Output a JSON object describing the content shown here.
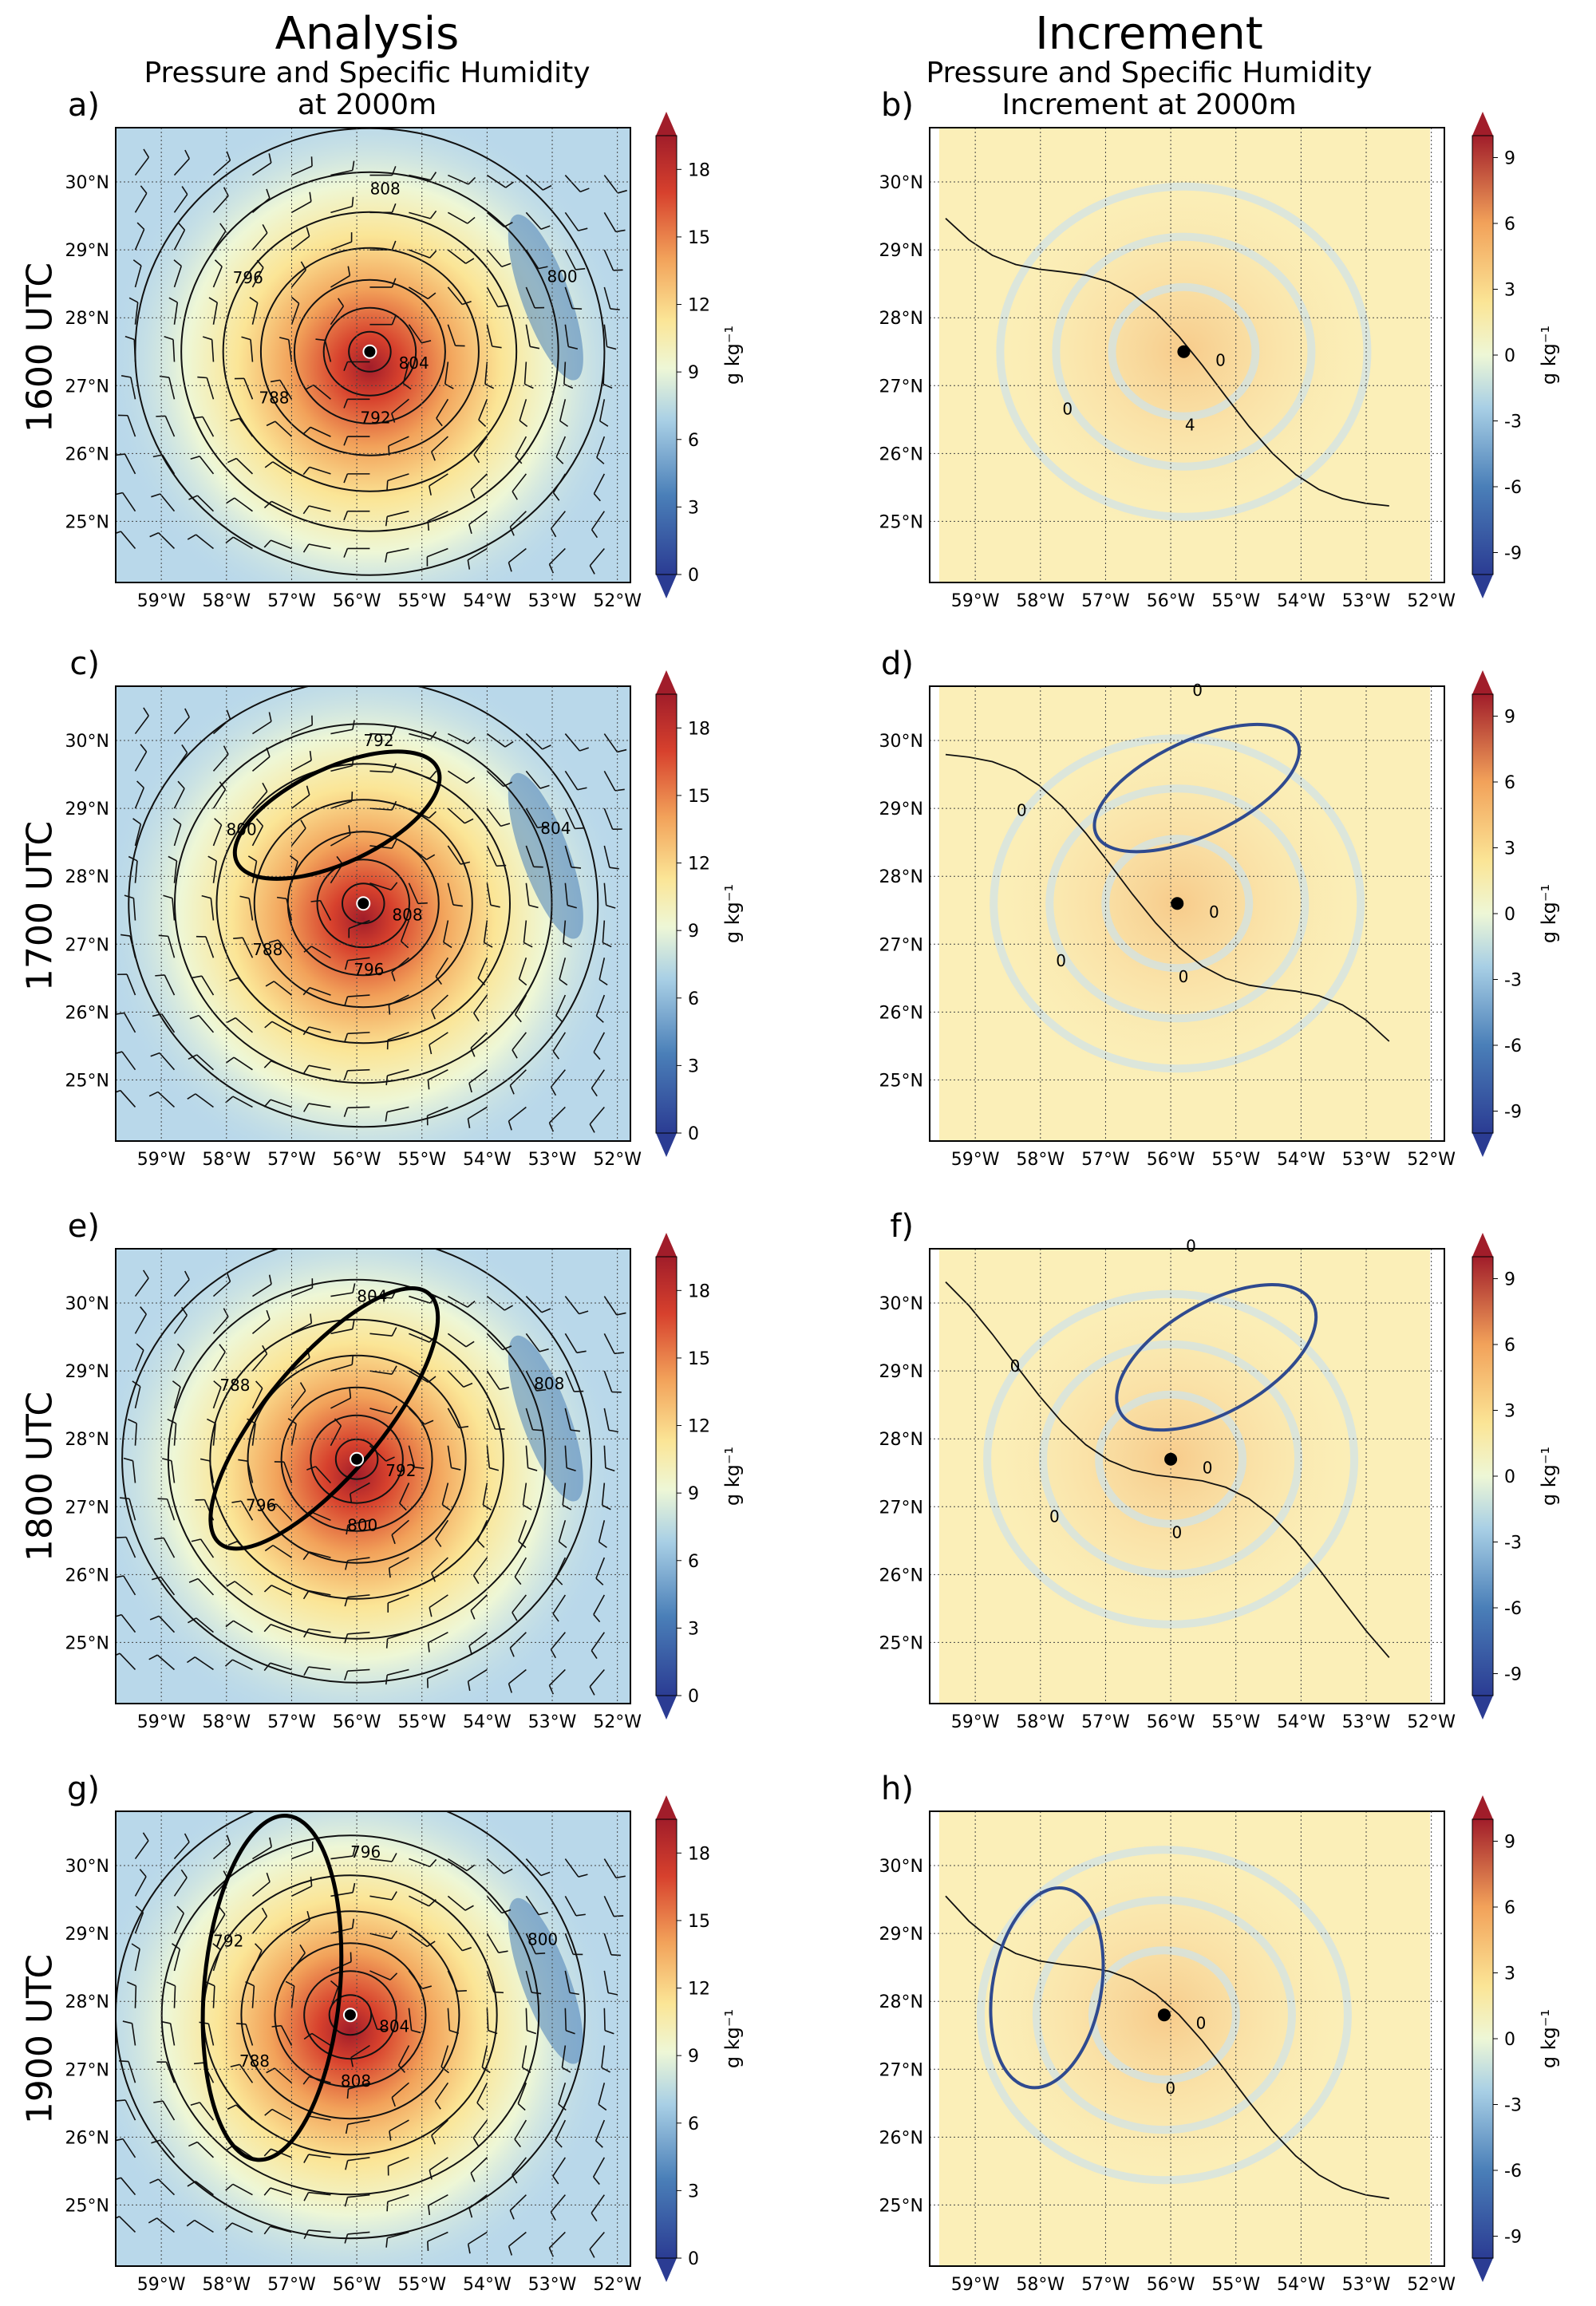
{
  "headers": {
    "analysis_title": "Analysis",
    "analysis_subtitle_1": "Pressure and Specific Humidity",
    "analysis_subtitle_2": "at 2000m",
    "increment_title": "Increment",
    "increment_subtitle_1": "Pressure and Specific Humidity",
    "increment_subtitle_2": "Increment at 2000m"
  },
  "rows": [
    "1600 UTC",
    "1700 UTC",
    "1800 UTC",
    "1900 UTC"
  ],
  "colors": {
    "blue_dark": "#2b3c93",
    "blue_mid": "#4a7fb8",
    "blue_light": "#a8cfe5",
    "pale": "#eef7d6",
    "yellow": "#fbe596",
    "orange": "#f2a25a",
    "red": "#d7412d",
    "red_dark": "#a11d2a",
    "ellipse_blue": "#2f4a8f"
  },
  "chart_data": [
    {
      "panel": "a)",
      "type": "heatmap",
      "row": "1600 UTC",
      "kind": "analysis",
      "title": "Pressure and Specific Humidity at 2000m",
      "x_ticks": [
        "59°W",
        "58°W",
        "57°W",
        "56°W",
        "55°W",
        "54°W",
        "53°W",
        "52°W"
      ],
      "y_ticks": [
        "25°N",
        "26°N",
        "27°N",
        "28°N",
        "29°N",
        "30°N"
      ],
      "colorbar_ticks": [
        "0",
        "3",
        "6",
        "9",
        "12",
        "15",
        "18"
      ],
      "colorbar_label": "g kg⁻¹",
      "colorbar_range": [
        0,
        19.5
      ],
      "contour_labels": [
        "804",
        "792",
        "788",
        "796",
        "808",
        "800"
      ],
      "center": {
        "lon": -55.8,
        "lat": 27.5
      }
    },
    {
      "panel": "b)",
      "type": "heatmap",
      "row": "1600 UTC",
      "kind": "increment",
      "title": "Pressure and Specific Humidity Increment at 2000m",
      "x_ticks": [
        "59°W",
        "58°W",
        "57°W",
        "56°W",
        "55°W",
        "54°W",
        "53°W",
        "52°W"
      ],
      "y_ticks": [
        "25°N",
        "26°N",
        "27°N",
        "28°N",
        "29°N",
        "30°N"
      ],
      "colorbar_ticks": [
        "-9",
        "-6",
        "-3",
        "0",
        "3",
        "6",
        "9"
      ],
      "colorbar_label": "g kg⁻¹",
      "colorbar_range": [
        -10,
        10
      ],
      "contour_labels": [
        "0",
        "4",
        "0"
      ],
      "center": {
        "lon": -55.8,
        "lat": 27.5
      }
    },
    {
      "panel": "c)",
      "type": "heatmap",
      "row": "1700 UTC",
      "kind": "analysis",
      "x_ticks": [
        "59°W",
        "58°W",
        "57°W",
        "56°W",
        "55°W",
        "54°W",
        "53°W",
        "52°W"
      ],
      "y_ticks": [
        "25°N",
        "26°N",
        "27°N",
        "28°N",
        "29°N",
        "30°N"
      ],
      "colorbar_ticks": [
        "0",
        "3",
        "6",
        "9",
        "12",
        "15",
        "18"
      ],
      "colorbar_label": "g kg⁻¹",
      "colorbar_range": [
        0,
        19.5
      ],
      "contour_labels": [
        "808",
        "796",
        "788",
        "800",
        "792",
        "804"
      ],
      "center": {
        "lon": -55.9,
        "lat": 27.6
      },
      "ellipse": {
        "lon": -56.3,
        "lat": 28.9,
        "rx_deg": 1.7,
        "ry_deg": 0.7,
        "angle": -25
      }
    },
    {
      "panel": "d)",
      "type": "heatmap",
      "row": "1700 UTC",
      "kind": "increment",
      "x_ticks": [
        "59°W",
        "58°W",
        "57°W",
        "56°W",
        "55°W",
        "54°W",
        "53°W",
        "52°W"
      ],
      "y_ticks": [
        "25°N",
        "26°N",
        "27°N",
        "28°N",
        "29°N",
        "30°N"
      ],
      "colorbar_ticks": [
        "-9",
        "-6",
        "-3",
        "0",
        "3",
        "6",
        "9"
      ],
      "colorbar_label": "g kg⁻¹",
      "colorbar_range": [
        -10,
        10
      ],
      "contour_labels": [
        "0",
        "0",
        "0",
        "0",
        "0"
      ],
      "center": {
        "lon": -55.9,
        "lat": 27.6
      },
      "ellipse": {
        "lon": -55.6,
        "lat": 29.3,
        "rx_deg": 1.7,
        "ry_deg": 0.7,
        "angle": -25
      }
    },
    {
      "panel": "e)",
      "type": "heatmap",
      "row": "1800 UTC",
      "kind": "analysis",
      "x_ticks": [
        "59°W",
        "58°W",
        "57°W",
        "56°W",
        "55°W",
        "54°W",
        "53°W",
        "52°W"
      ],
      "y_ticks": [
        "25°N",
        "26°N",
        "27°N",
        "28°N",
        "29°N",
        "30°N"
      ],
      "colorbar_ticks": [
        "0",
        "3",
        "6",
        "9",
        "12",
        "15",
        "18"
      ],
      "colorbar_label": "g kg⁻¹",
      "colorbar_range": [
        0,
        19.5
      ],
      "contour_labels": [
        "792",
        "800",
        "796",
        "788",
        "804",
        "808"
      ],
      "center": {
        "lon": -56.0,
        "lat": 27.7
      },
      "ellipse": {
        "lon": -56.5,
        "lat": 28.3,
        "rx_deg": 2.5,
        "ry_deg": 0.85,
        "angle": -50
      }
    },
    {
      "panel": "f)",
      "type": "heatmap",
      "row": "1800 UTC",
      "kind": "increment",
      "x_ticks": [
        "59°W",
        "58°W",
        "57°W",
        "56°W",
        "55°W",
        "54°W",
        "53°W",
        "52°W"
      ],
      "y_ticks": [
        "25°N",
        "26°N",
        "27°N",
        "28°N",
        "29°N",
        "30°N"
      ],
      "colorbar_ticks": [
        "-9",
        "-6",
        "-3",
        "0",
        "3",
        "6",
        "9"
      ],
      "colorbar_label": "g kg⁻¹",
      "colorbar_range": [
        -10,
        10
      ],
      "contour_labels": [
        "0",
        "0",
        "0",
        "0",
        "0"
      ],
      "center": {
        "lon": -56.0,
        "lat": 27.7
      },
      "ellipse": {
        "lon": -55.3,
        "lat": 29.2,
        "rx_deg": 1.7,
        "ry_deg": 0.8,
        "angle": -30
      }
    },
    {
      "panel": "g)",
      "type": "heatmap",
      "row": "1900 UTC",
      "kind": "analysis",
      "x_ticks": [
        "59°W",
        "58°W",
        "57°W",
        "56°W",
        "55°W",
        "54°W",
        "53°W",
        "52°W"
      ],
      "y_ticks": [
        "25°N",
        "26°N",
        "27°N",
        "28°N",
        "29°N",
        "30°N"
      ],
      "colorbar_ticks": [
        "0",
        "3",
        "6",
        "9",
        "12",
        "15",
        "18"
      ],
      "colorbar_label": "g kg⁻¹",
      "colorbar_range": [
        0,
        19.5
      ],
      "contour_labels": [
        "804",
        "808",
        "788",
        "792",
        "796",
        "800"
      ],
      "center": {
        "lon": -56.1,
        "lat": 27.8
      },
      "ellipse": {
        "lon": -57.3,
        "lat": 28.2,
        "rx_deg": 2.65,
        "ry_deg": 1.0,
        "angle": -85
      }
    },
    {
      "panel": "h)",
      "type": "heatmap",
      "row": "1900 UTC",
      "kind": "increment",
      "x_ticks": [
        "59°W",
        "58°W",
        "57°W",
        "56°W",
        "55°W",
        "54°W",
        "53°W",
        "52°W"
      ],
      "y_ticks": [
        "25°N",
        "26°N",
        "27°N",
        "28°N",
        "29°N",
        "30°N"
      ],
      "colorbar_ticks": [
        "-9",
        "-6",
        "-3",
        "0",
        "3",
        "6",
        "9"
      ],
      "colorbar_label": "g kg⁻¹",
      "colorbar_range": [
        -10,
        10
      ],
      "contour_labels": [
        "0",
        "0"
      ],
      "center": {
        "lon": -56.1,
        "lat": 27.8
      },
      "ellipse": {
        "lon": -57.9,
        "lat": 28.2,
        "rx_deg": 1.55,
        "ry_deg": 0.8,
        "angle": -80
      }
    }
  ]
}
